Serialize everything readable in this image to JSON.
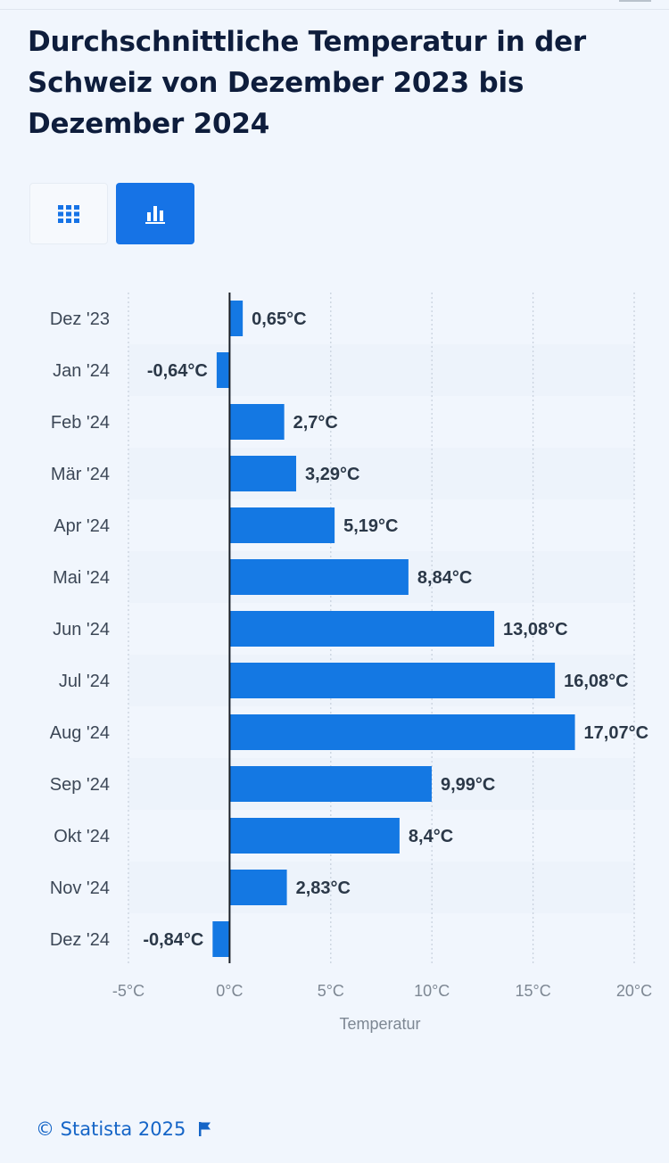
{
  "title": "Durchschnittliche Temperatur in der Schweiz von Dezember 2023 bis Dezember 2024",
  "view_toggle": {
    "table_icon": "grid-icon",
    "chart_icon": "bar-chart-icon",
    "active": "chart"
  },
  "colors": {
    "bar": "#1478e3",
    "accent": "#1673e6",
    "title": "#0e1d3c",
    "label": "#2b3848"
  },
  "chart_data": {
    "type": "bar",
    "orientation": "horizontal",
    "categories": [
      "Dez '23",
      "Jan '24",
      "Feb '24",
      "Mär '24",
      "Apr '24",
      "Mai '24",
      "Jun '24",
      "Jul '24",
      "Aug '24",
      "Sep '24",
      "Okt '24",
      "Nov '24",
      "Dez '24"
    ],
    "values": [
      0.65,
      -0.64,
      2.7,
      3.29,
      5.19,
      8.84,
      13.08,
      16.08,
      17.07,
      9.99,
      8.4,
      2.83,
      -0.84
    ],
    "data_labels": [
      "0,65°C",
      "-0,64°C",
      "2,7°C",
      "3,29°C",
      "5,19°C",
      "8,84°C",
      "13,08°C",
      "16,08°C",
      "17,07°C",
      "9,99°C",
      "8,4°C",
      "2,83°C",
      "-0,84°C"
    ],
    "xlim": [
      -5,
      20
    ],
    "x_ticks": [
      -5,
      0,
      5,
      10,
      15,
      20
    ],
    "x_tick_labels": [
      "-5°C",
      "0°C",
      "5°C",
      "10°C",
      "15°C",
      "20°C"
    ],
    "xlabel": "Temperatur",
    "grid": true,
    "legend": "none"
  },
  "footer": {
    "copyright": "© Statista 2025",
    "flag_icon": "flag-icon"
  }
}
